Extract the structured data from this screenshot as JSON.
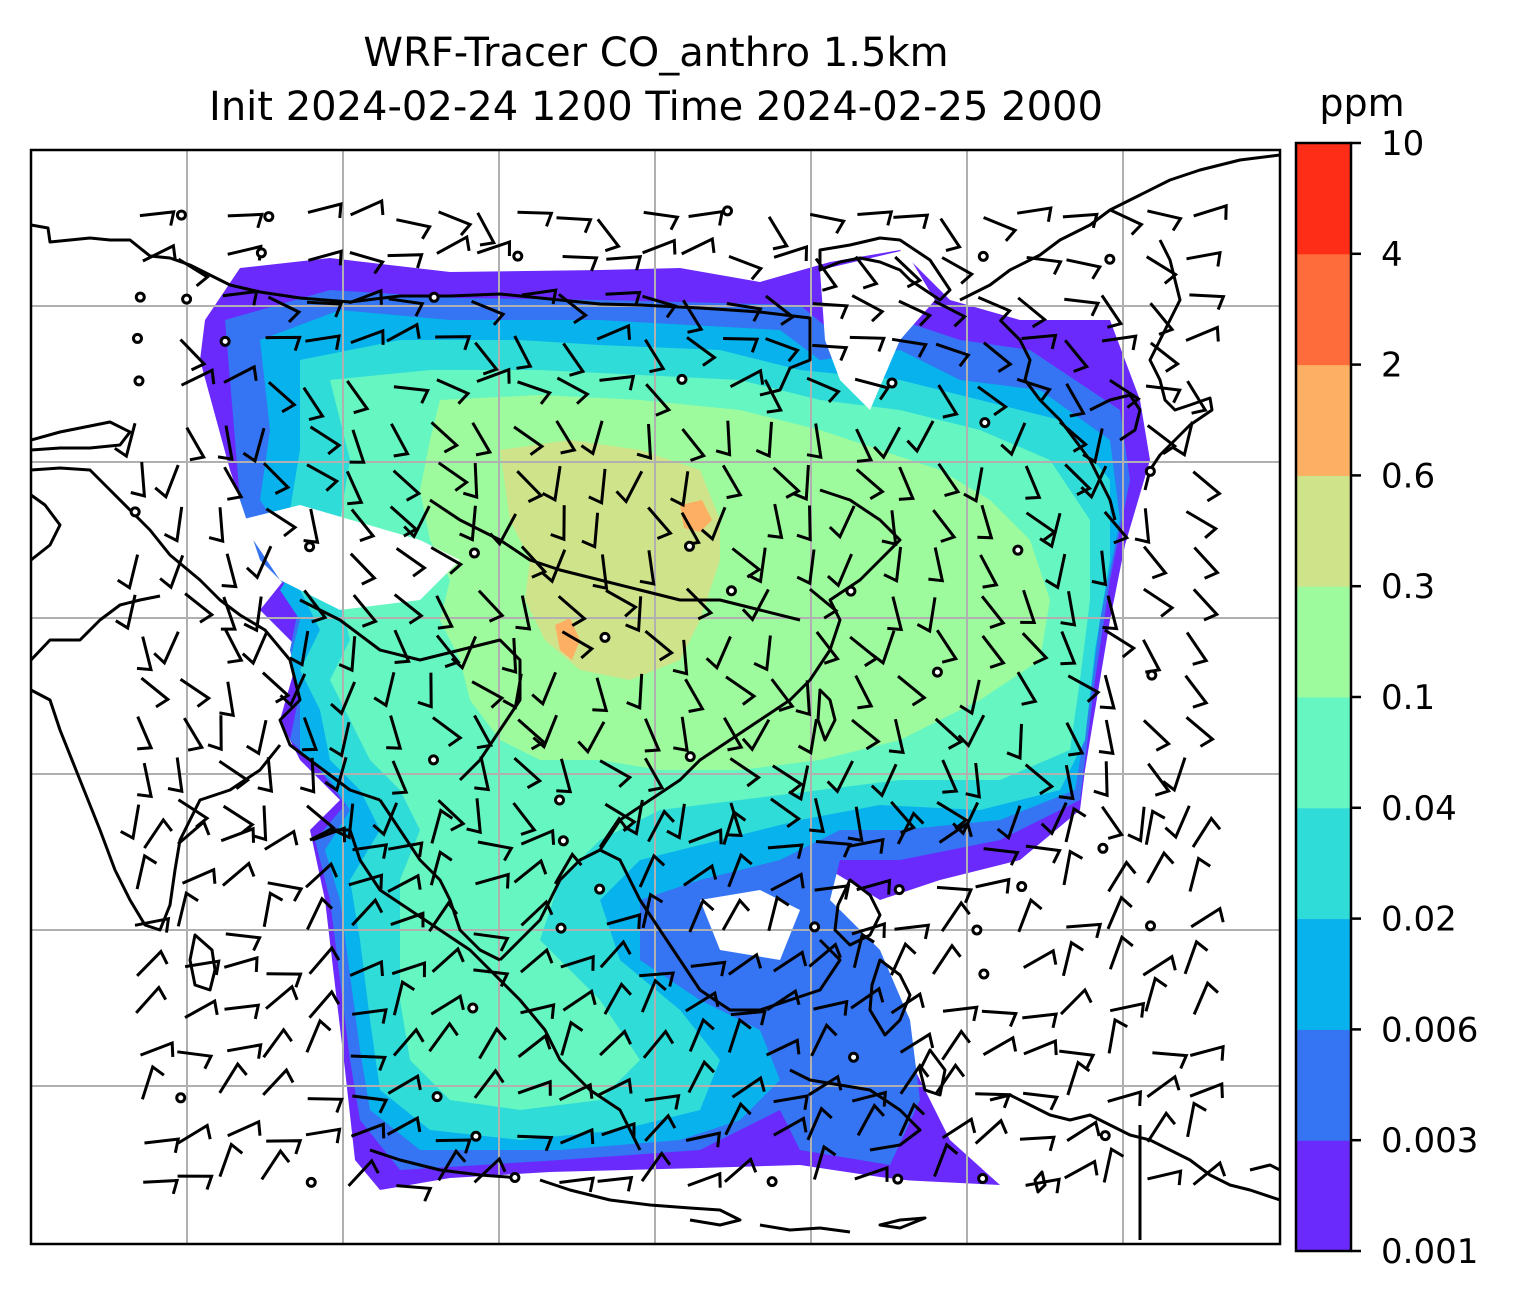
{
  "chart_data": {
    "type": "heatmap",
    "title_line1": "WRF-Tracer CO_anthro 1.5km",
    "title_line2": "Init 2024-02-24 1200 Time 2024-02-25 2000",
    "colorbar": {
      "label": "ppm",
      "ticks": [
        "0.001",
        "0.003",
        "0.006",
        "0.02",
        "0.04",
        "0.1",
        "0.3",
        "0.6",
        "2",
        "4",
        "10"
      ],
      "colors": [
        "#6a2afc",
        "#3574f2",
        "#08b2ec",
        "#2fdcd8",
        "#65f6c2",
        "#9dfb9e",
        "#cfe38a",
        "#fdb063",
        "#fd6c3a",
        "#fd2d17"
      ]
    },
    "map": {
      "background": "#ffffff",
      "coastline_color": "#000000",
      "gridline_color": "#b0b0b0",
      "wind_barbs": true
    }
  }
}
